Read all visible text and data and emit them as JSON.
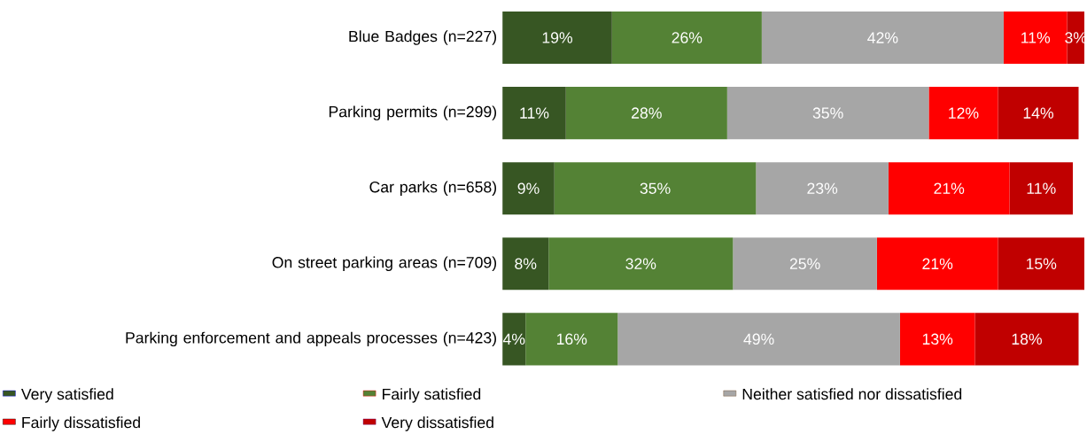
{
  "chart_data": {
    "type": "bar",
    "orientation": "horizontal",
    "stacked": true,
    "categories": [
      "Blue Badges (n=227)",
      "Parking permits (n=299)",
      "Car parks (n=658)",
      "On street parking areas (n=709)",
      "Parking enforcement and appeals processes (n=423)"
    ],
    "series": [
      {
        "name": "Very satisfied",
        "color": "#375623",
        "values": [
          19,
          11,
          9,
          8,
          4
        ],
        "value_labels": [
          "19%",
          "11%",
          "9%",
          "8%",
          "4%"
        ]
      },
      {
        "name": "Fairly satisfied",
        "color": "#548235",
        "values": [
          26,
          28,
          35,
          32,
          16
        ],
        "value_labels": [
          "26%",
          "28%",
          "35%",
          "32%",
          "16%"
        ]
      },
      {
        "name": "Neither satisfied nor dissatisfied",
        "color": "#a6a6a6",
        "values": [
          42,
          35,
          23,
          25,
          49
        ],
        "value_labels": [
          "42%",
          "35%",
          "23%",
          "25%",
          "49%"
        ]
      },
      {
        "name": "Fairly dissatisfied",
        "color": "#ff0000",
        "values": [
          11,
          12,
          21,
          21,
          13
        ],
        "value_labels": [
          "11%",
          "12%",
          "21%",
          "21%",
          "13%"
        ]
      },
      {
        "name": "Very dissatisfied",
        "color": "#c00000",
        "values": [
          3,
          14,
          11,
          15,
          18
        ],
        "value_labels": [
          "3%",
          "14%",
          "11%",
          "15%",
          "18%"
        ]
      }
    ],
    "tick_labels": "y",
    "legend": "bottom",
    "grid": false
  }
}
